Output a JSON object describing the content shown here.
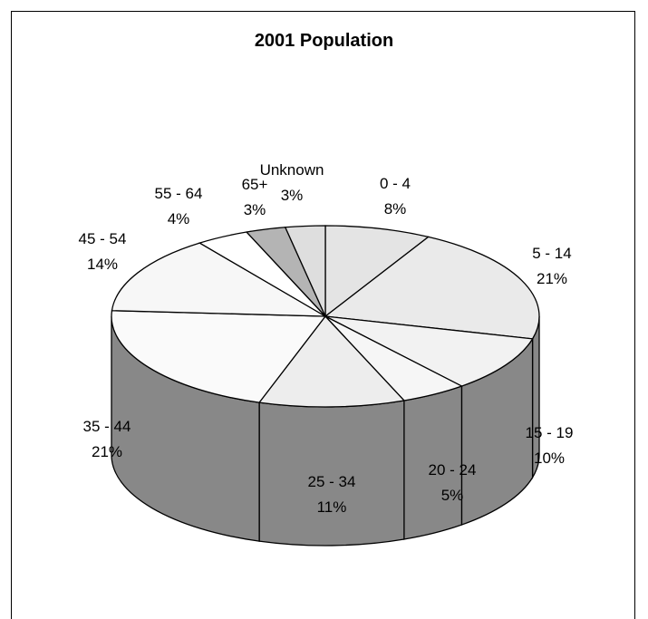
{
  "chart_data": {
    "type": "pie",
    "title": "2001 Population",
    "slices": [
      {
        "label": "0 - 4",
        "value": 8,
        "pct_label": "8%",
        "color": "#e4e4e4"
      },
      {
        "label": "5 - 14",
        "value": 21,
        "pct_label": "21%",
        "color": "#eaeaea"
      },
      {
        "label": "15 - 19",
        "value": 10,
        "pct_label": "10%",
        "color": "#f2f2f2"
      },
      {
        "label": "20 - 24",
        "value": 5,
        "pct_label": "5%",
        "color": "#f6f6f6"
      },
      {
        "label": "25 - 34",
        "value": 11,
        "pct_label": "11%",
        "color": "#ededed"
      },
      {
        "label": "35 - 44",
        "value": 21,
        "pct_label": "21%",
        "color": "#fafafa"
      },
      {
        "label": "45 - 54",
        "value": 14,
        "pct_label": "14%",
        "color": "#f7f7f7"
      },
      {
        "label": "55 - 64",
        "value": 4,
        "pct_label": "4%",
        "color": "#ffffff"
      },
      {
        "label": "65+",
        "value": 3,
        "pct_label": "3%",
        "color": "#b4b4b4"
      },
      {
        "label": "Unknown",
        "value": 3,
        "pct_label": "3%",
        "color": "#dedede"
      }
    ],
    "side_color": "#888888",
    "legend": "none"
  }
}
